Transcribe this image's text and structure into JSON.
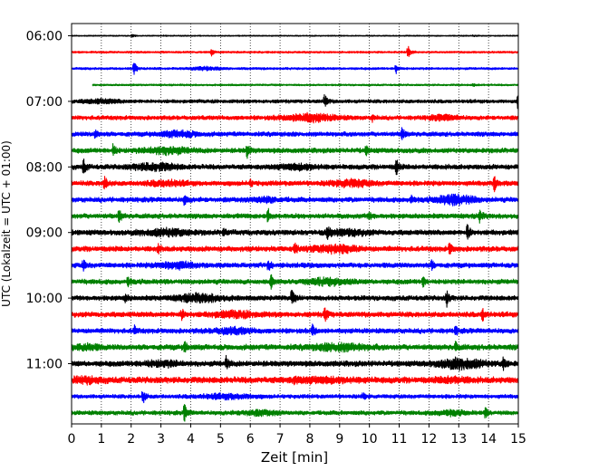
{
  "chart_data": {
    "type": "line",
    "title": "",
    "xlabel": "Zeit  [min]",
    "ylabel": "UTC (Lokalzeit = UTC + 01:00)",
    "xlim": [
      0,
      15
    ],
    "x_ticks": [
      0,
      1,
      2,
      3,
      4,
      5,
      6,
      7,
      8,
      9,
      10,
      11,
      12,
      13,
      14,
      15
    ],
    "y_tick_labels": [
      "06:00",
      "07:00",
      "08:00",
      "09:00",
      "10:00",
      "11:00"
    ],
    "grid": "vertical dotted at each minute",
    "line_colors": [
      "#000000",
      "#ff0000",
      "#0000ff",
      "#008000"
    ],
    "traces": [
      {
        "start": "06:00",
        "amp": 0.7,
        "events": [
          [
            2.05,
            1.8
          ],
          [
            3.1,
            0.5
          ],
          [
            13.5,
            0.6
          ]
        ],
        "burst": []
      },
      {
        "start": "06:15",
        "amp": 1.2,
        "events": [
          [
            4.7,
            4
          ],
          [
            11.3,
            8
          ]
        ],
        "burst": []
      },
      {
        "start": "06:30",
        "amp": 1.4,
        "events": [
          [
            2.1,
            7
          ],
          [
            10.9,
            5
          ]
        ],
        "burst": [
          [
            4.5,
            0.8,
            1.5
          ]
        ]
      },
      {
        "start": "06:45",
        "amp": 1.1,
        "events": [
          [
            13.5,
            1.5
          ]
        ],
        "burst": [],
        "start_x": 0.7
      },
      {
        "start": "07:00",
        "amp": 2.2,
        "events": [
          [
            8.5,
            8
          ],
          [
            15.0,
            9
          ]
        ],
        "burst": [
          [
            1,
            1,
            1.6
          ]
        ]
      },
      {
        "start": "07:15",
        "amp": 2.6,
        "events": [
          [
            10.1,
            3
          ]
        ],
        "burst": [
          [
            8.0,
            1.4,
            3.5
          ],
          [
            12.5,
            0.8,
            2
          ]
        ]
      },
      {
        "start": "07:30",
        "amp": 2.8,
        "events": [
          [
            0.8,
            5
          ],
          [
            11.1,
            8
          ]
        ],
        "burst": [
          [
            3.6,
            1,
            2.5
          ]
        ]
      },
      {
        "start": "07:45",
        "amp": 3.0,
        "events": [
          [
            1.4,
            7
          ],
          [
            5.9,
            8
          ],
          [
            9.9,
            4
          ]
        ],
        "burst": [
          [
            3.2,
            1.2,
            3
          ]
        ]
      },
      {
        "start": "08:00",
        "amp": 3.0,
        "events": [
          [
            0.4,
            8
          ],
          [
            10.9,
            9
          ]
        ],
        "burst": [
          [
            2.8,
            1.2,
            3
          ],
          [
            7.6,
            1,
            2.5
          ]
        ]
      },
      {
        "start": "08:15",
        "amp": 3.0,
        "events": [
          [
            1.1,
            8
          ],
          [
            6.0,
            3
          ],
          [
            14.2,
            8
          ]
        ],
        "burst": [
          [
            9.4,
            1,
            3
          ],
          [
            3.2,
            1,
            2.2
          ]
        ]
      },
      {
        "start": "08:30",
        "amp": 3.0,
        "events": [
          [
            3.8,
            6
          ],
          [
            11.4,
            5
          ]
        ],
        "burst": [
          [
            12.9,
            1,
            4.5
          ],
          [
            6.5,
            0.8,
            2
          ]
        ]
      },
      {
        "start": "08:45",
        "amp": 3.0,
        "events": [
          [
            1.6,
            7
          ],
          [
            6.6,
            8
          ],
          [
            10.0,
            4
          ],
          [
            13.7,
            7
          ]
        ],
        "burst": []
      },
      {
        "start": "09:00",
        "amp": 3.2,
        "events": [
          [
            5.1,
            4
          ],
          [
            8.6,
            6
          ],
          [
            13.3,
            9
          ]
        ],
        "burst": [
          [
            3.2,
            1.2,
            3
          ],
          [
            9.3,
            1,
            2.5
          ]
        ]
      },
      {
        "start": "09:15",
        "amp": 3.2,
        "events": [
          [
            2.9,
            4
          ],
          [
            7.5,
            7
          ],
          [
            12.7,
            6
          ]
        ],
        "burst": [
          [
            8.8,
            1.2,
            3.2
          ]
        ]
      },
      {
        "start": "09:30",
        "amp": 3.0,
        "events": [
          [
            0.4,
            5
          ],
          [
            6.6,
            6
          ],
          [
            12.1,
            5
          ]
        ],
        "burst": [
          [
            3.5,
            1,
            2.8
          ]
        ]
      },
      {
        "start": "09:45",
        "amp": 3.0,
        "events": [
          [
            1.9,
            5
          ],
          [
            6.7,
            7
          ],
          [
            11.8,
            5
          ]
        ],
        "burst": [
          [
            8.6,
            1,
            3
          ]
        ]
      },
      {
        "start": "10:00",
        "amp": 3.0,
        "events": [
          [
            1.8,
            4
          ],
          [
            7.4,
            8
          ],
          [
            12.6,
            8
          ]
        ],
        "burst": [
          [
            4.3,
            1.2,
            3.5
          ]
        ]
      },
      {
        "start": "10:15",
        "amp": 3.2,
        "events": [
          [
            3.7,
            6
          ],
          [
            8.5,
            9
          ],
          [
            13.8,
            7
          ]
        ],
        "burst": [
          [
            5.5,
            1.2,
            2.5
          ]
        ]
      },
      {
        "start": "10:30",
        "amp": 3.0,
        "events": [
          [
            2.1,
            5
          ],
          [
            8.1,
            7
          ],
          [
            12.9,
            4
          ]
        ],
        "burst": [
          [
            5.4,
            1,
            2.5
          ]
        ]
      },
      {
        "start": "10:45",
        "amp": 3.4,
        "events": [
          [
            3.8,
            6
          ],
          [
            12.9,
            5
          ]
        ],
        "burst": [
          [
            0.5,
            0.6,
            2.5
          ],
          [
            9.0,
            1.4,
            3
          ]
        ]
      },
      {
        "start": "11:00",
        "amp": 3.4,
        "events": [
          [
            5.2,
            7
          ],
          [
            14.5,
            7
          ]
        ],
        "burst": [
          [
            13.1,
            1.2,
            4.5
          ],
          [
            3.0,
            1,
            2.2
          ]
        ]
      },
      {
        "start": "11:15",
        "amp": 3.8,
        "events": [
          [
            7.5,
            3
          ]
        ],
        "burst": [
          [
            0.5,
            0.8,
            2.2
          ],
          [
            8.5,
            1.5,
            2
          ],
          [
            12.8,
            0.8,
            2
          ]
        ]
      },
      {
        "start": "11:30",
        "amp": 2.4,
        "events": [
          [
            2.4,
            7
          ],
          [
            9.8,
            3
          ]
        ],
        "burst": [
          [
            5.2,
            1.4,
            2
          ]
        ]
      },
      {
        "start": "11:45",
        "amp": 2.6,
        "events": [
          [
            3.8,
            9
          ],
          [
            13.9,
            5
          ]
        ],
        "burst": [
          [
            6.3,
            1,
            2
          ],
          [
            12.7,
            0.8,
            2
          ]
        ]
      }
    ]
  }
}
